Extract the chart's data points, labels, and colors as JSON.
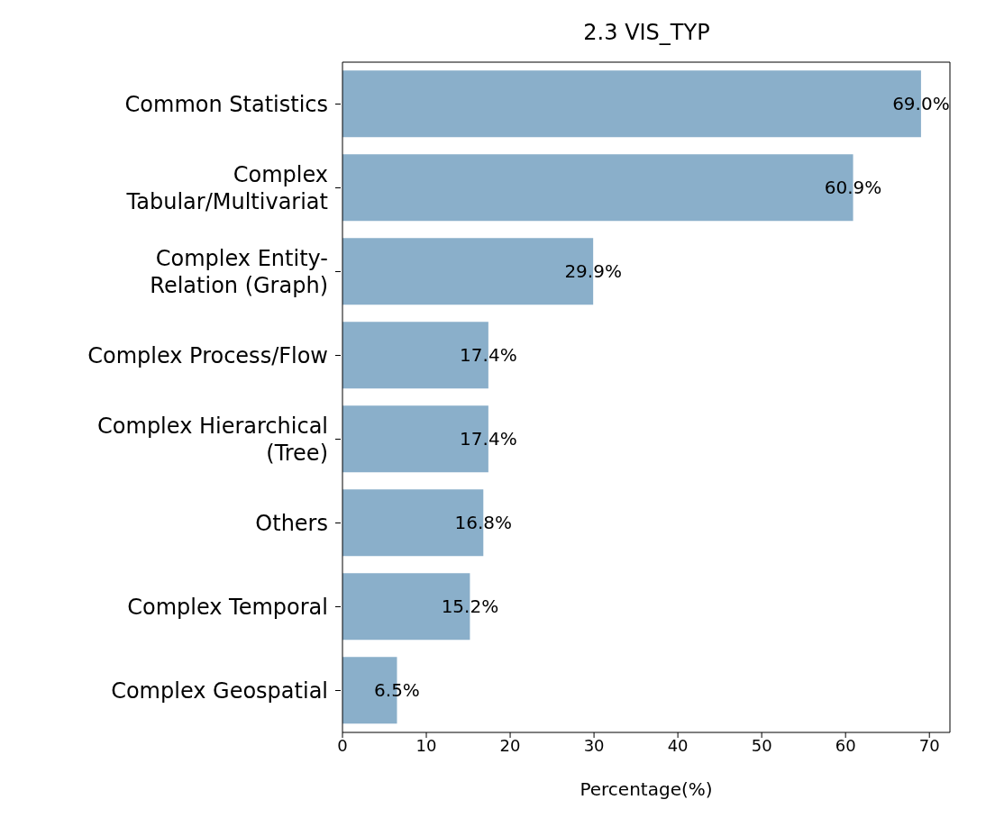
{
  "chart_data": {
    "type": "bar",
    "orientation": "horizontal",
    "title": "2.3 VIS_TYP",
    "xlabel": "Percentage(%)",
    "categories": [
      "Common Statistics",
      "Complex\nTabular/Multivariat",
      "Complex Entity-\nRelation (Graph)",
      "Complex Process/Flow",
      "Complex Hierarchical\n(Tree)",
      "Others",
      "Complex Temporal",
      "Complex Geospatial"
    ],
    "values": [
      69.0,
      60.9,
      29.9,
      17.4,
      17.4,
      16.8,
      15.2,
      6.5
    ],
    "value_labels": [
      "69.0%",
      "60.9%",
      "29.9%",
      "17.4%",
      "17.4%",
      "16.8%",
      "15.2%",
      "6.5%"
    ],
    "color": "#8aafca",
    "xlim": [
      0,
      72.45
    ],
    "xticks": [
      0,
      10,
      20,
      30,
      40,
      50,
      60,
      70
    ],
    "grid": false
  }
}
